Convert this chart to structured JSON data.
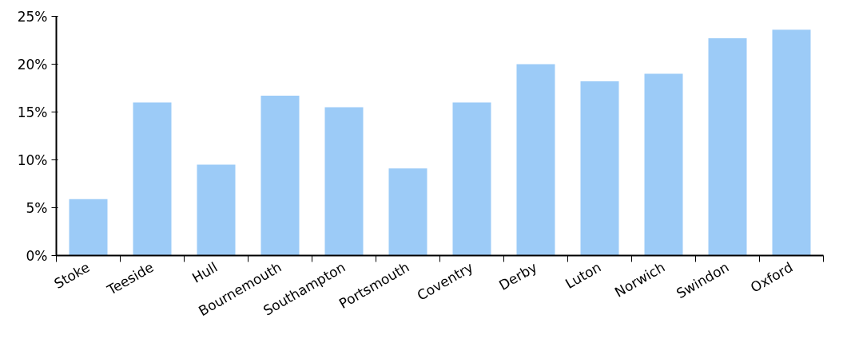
{
  "chart_data": {
    "type": "bar",
    "categories": [
      "Stoke",
      "Teeside",
      "Hull",
      "Bournemouth",
      "Southampton",
      "Portsmouth",
      "Coventry",
      "Derby",
      "Luton",
      "Norwich",
      "Swindon",
      "Oxford"
    ],
    "values": [
      5.9,
      16.0,
      9.5,
      16.7,
      15.5,
      9.1,
      16.0,
      20.0,
      18.2,
      19.0,
      22.7,
      23.6
    ],
    "color": "#9ccbf7",
    "ylim": [
      0,
      25
    ],
    "yticks": [
      {
        "value": 0,
        "label": "0%"
      },
      {
        "value": 5,
        "label": "5%"
      },
      {
        "value": 10,
        "label": "10%"
      },
      {
        "value": 15,
        "label": "15%"
      },
      {
        "value": 20,
        "label": "20%"
      },
      {
        "value": 25,
        "label": "25%"
      }
    ],
    "grid": false
  }
}
